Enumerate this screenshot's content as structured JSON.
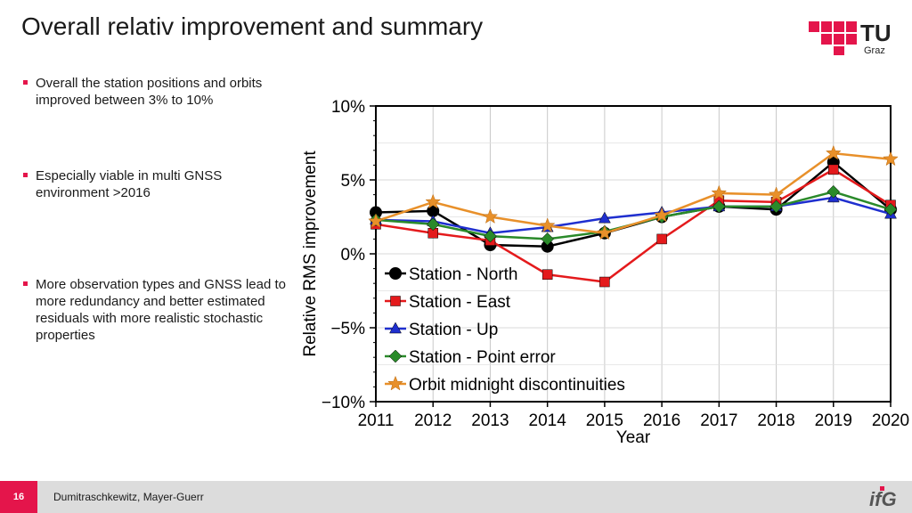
{
  "slide": {
    "title": "Overall relativ improvement and summary",
    "page_number": "16",
    "authors": "Dumitraschkewitz, Mayer-Guerr"
  },
  "logo": {
    "text": "TU",
    "subtext": "Graz",
    "color": "#e4154b"
  },
  "footer_logo": {
    "text": "ifG"
  },
  "bullets": [
    "Overall the station positions and orbits improved between 3% to 10%",
    "Especially viable in multi GNSS environment >2016",
    "More observation types and GNSS lead to more redundancy and better estimated residuals with more realistic stochastic properties"
  ],
  "chart_data": {
    "type": "line",
    "xlabel": "Year",
    "ylabel": "Relative RMS improvement",
    "xlim": [
      2011,
      2020
    ],
    "ylim": [
      -10,
      10
    ],
    "x": [
      2011,
      2012,
      2013,
      2014,
      2015,
      2016,
      2017,
      2018,
      2019,
      2020
    ],
    "x_ticks": [
      "2011",
      "2012",
      "2013",
      "2014",
      "2015",
      "2016",
      "2017",
      "2018",
      "2019",
      "2020"
    ],
    "y_ticks": [
      10,
      5,
      0,
      -5,
      -10
    ],
    "y_tick_labels": [
      "10%",
      "5%",
      "0%",
      "−5%",
      "−10%"
    ],
    "grid": true,
    "legend_position": "bottom-left",
    "series": [
      {
        "name": "Station - North",
        "color": "#000000",
        "marker": "circle",
        "x": [
          2011,
          2012,
          2013,
          2014,
          2015,
          2016,
          2017,
          2018,
          2019,
          2020
        ],
        "values": [
          2.8,
          2.9,
          0.6,
          0.5,
          1.4,
          2.5,
          3.2,
          3.0,
          6.2,
          3.0
        ]
      },
      {
        "name": "Station - East",
        "color": "#e41a1c",
        "marker": "square",
        "x": [
          2011,
          2012,
          2013,
          2014,
          2015,
          2016,
          2017,
          2018,
          2019,
          2020
        ],
        "values": [
          2.0,
          1.4,
          0.9,
          -1.4,
          -1.9,
          1.0,
          3.6,
          3.5,
          5.7,
          3.3
        ]
      },
      {
        "name": "Station - Up",
        "color": "#1f2fcf",
        "marker": "triangle",
        "x": [
          2011,
          2012,
          2013,
          2014,
          2015,
          2016,
          2017,
          2018,
          2019,
          2020
        ],
        "values": [
          2.3,
          2.2,
          1.4,
          1.8,
          2.4,
          2.8,
          3.2,
          3.2,
          3.8,
          2.7
        ]
      },
      {
        "name": "Station - Point error",
        "color": "#2a8a2a",
        "marker": "diamond",
        "x": [
          2011,
          2012,
          2013,
          2014,
          2015,
          2016,
          2017,
          2018,
          2019,
          2020
        ],
        "values": [
          2.3,
          2.0,
          1.2,
          1.0,
          1.5,
          2.5,
          3.2,
          3.2,
          4.2,
          3.0
        ]
      },
      {
        "name": "Orbit midnight discontinuities",
        "color": "#e8902a",
        "marker": "star",
        "x": [
          2011,
          2012,
          2013,
          2014,
          2015,
          2016,
          2017,
          2018,
          2019,
          2020
        ],
        "values": [
          2.2,
          3.5,
          2.5,
          1.9,
          1.4,
          2.6,
          4.1,
          4.0,
          6.8,
          6.4
        ]
      }
    ]
  }
}
